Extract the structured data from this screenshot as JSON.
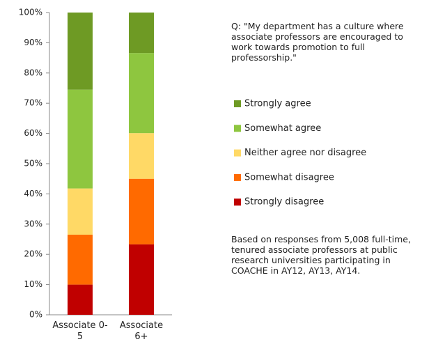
{
  "chart_data": {
    "type": "stacked_bar",
    "categories": [
      "Associate 0-5",
      "Associate 6+"
    ],
    "series": [
      {
        "name": "Strongly disagree",
        "color": "#c00000",
        "values": [
          10,
          23.3
        ]
      },
      {
        "name": "Somewhat disagree",
        "color": "#ff6a00",
        "values": [
          16.5,
          21.7
        ]
      },
      {
        "name": "Neither agree nor disagree",
        "color": "#ffd966",
        "values": [
          15.3,
          15.1
        ]
      },
      {
        "name": "Somewhat agree",
        "color": "#8ec63f",
        "values": [
          32.7,
          26.5
        ]
      },
      {
        "name": "Strongly agree",
        "color": "#6e9a24",
        "values": [
          25.5,
          13.4
        ]
      }
    ],
    "ylim": [
      0,
      100
    ],
    "yticks": [
      {
        "value": 0,
        "label": "0%"
      },
      {
        "value": 10,
        "label": "10%"
      },
      {
        "value": 20,
        "label": "20%"
      },
      {
        "value": 30,
        "label": "30%"
      },
      {
        "value": 40,
        "label": "40%"
      },
      {
        "value": 50,
        "label": "50%"
      },
      {
        "value": 60,
        "label": "60%"
      },
      {
        "value": 70,
        "label": "70%"
      },
      {
        "value": 80,
        "label": "80%"
      },
      {
        "value": 90,
        "label": "90%"
      },
      {
        "value": 100,
        "label": "100%"
      }
    ],
    "annotations": [
      "Q: \"My department has a culture where associate professors are encouraged to work towards promotion to full professorship.\"",
      "Based on responses from 5,008 full-time, tenured associate professors at public research universities participating in COACHE  in AY12, AY13, AY14."
    ]
  }
}
